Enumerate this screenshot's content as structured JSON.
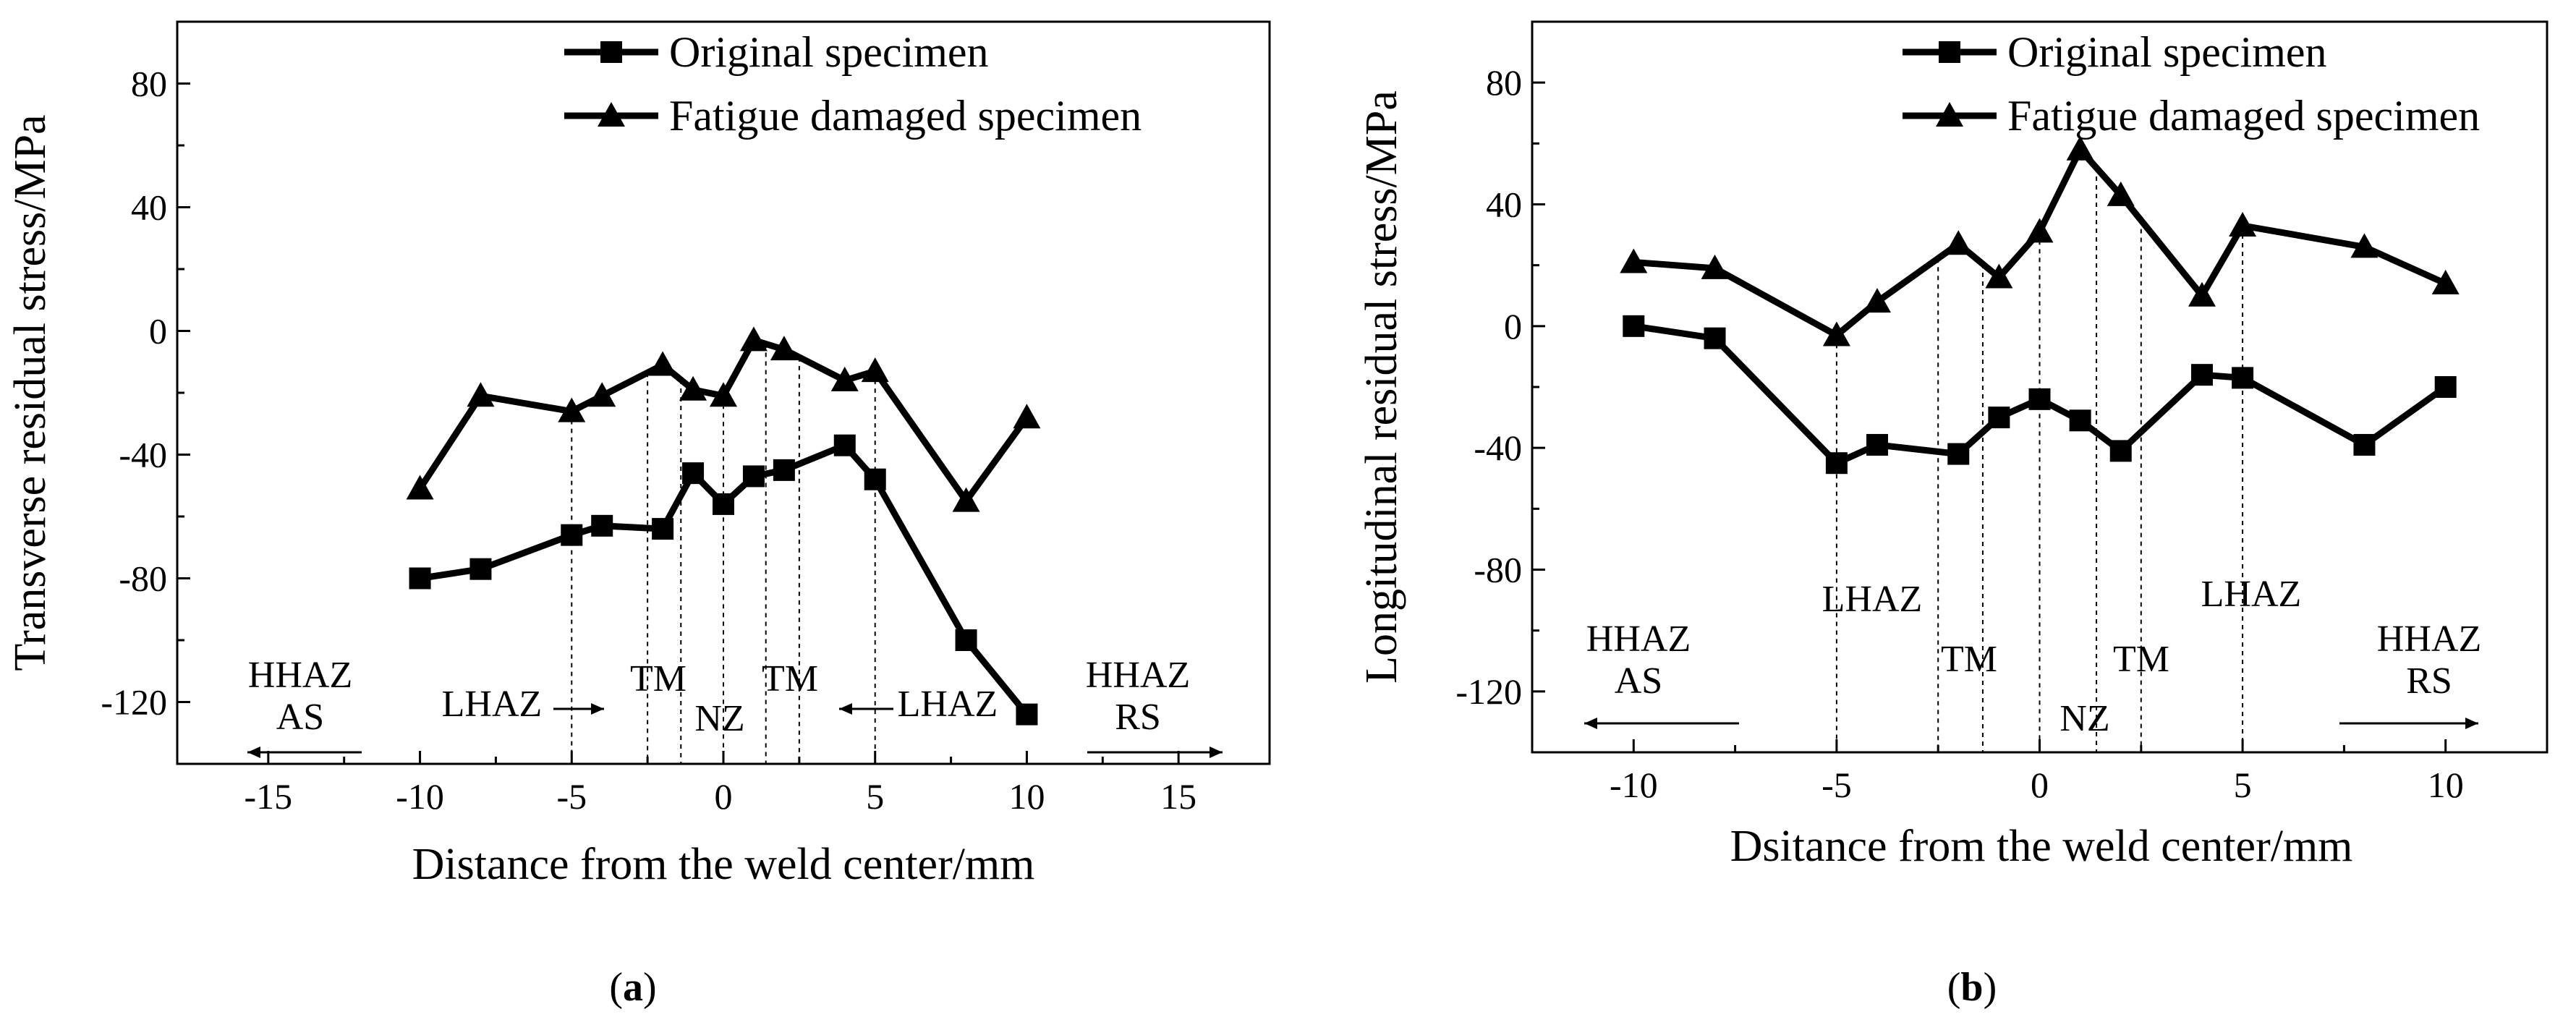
{
  "chart_data": [
    {
      "type": "line",
      "panel_label": "a",
      "xlabel": "Distance from the weld center/mm",
      "ylabel": "Transverse residual stress/MPa",
      "xlim": [
        -18,
        18
      ],
      "ylim": [
        -140,
        100
      ],
      "xticks": [
        -15,
        -10,
        -5,
        0,
        5,
        10,
        15
      ],
      "yticks": [
        -120,
        -80,
        -40,
        0,
        40,
        80
      ],
      "legend_position": "top-right",
      "series": [
        {
          "name": "Original specimen",
          "marker": "square",
          "x": [
            -10,
            -8,
            -5,
            -4,
            -2,
            -1,
            0,
            1,
            2,
            4,
            5,
            8,
            10
          ],
          "y": [
            -80,
            -77,
            -66,
            -63,
            -64,
            -46,
            -56,
            -47,
            -45,
            -37,
            -48,
            -100,
            -124
          ]
        },
        {
          "name": "Fatigue damaged specimen",
          "marker": "triangle",
          "x": [
            -10,
            -8,
            -5,
            -4,
            -2,
            -1,
            0,
            1,
            2,
            4,
            5,
            8,
            10
          ],
          "y": [
            -51,
            -21,
            -26,
            -21,
            -11,
            -19,
            -21,
            -3,
            -6,
            -16,
            -13,
            -55,
            -28
          ]
        }
      ],
      "region_lines_x": [
        -5,
        -2.5,
        -1.4,
        0,
        1.4,
        2.5,
        5
      ],
      "regions": [
        {
          "label": "HHAZ",
          "sub": "AS",
          "arrow": "left"
        },
        {
          "label": "LHAZ",
          "arrow": "right"
        },
        {
          "label": "TM"
        },
        {
          "label": "NZ"
        },
        {
          "label": "TM"
        },
        {
          "label": "LHAZ",
          "arrow": "left"
        },
        {
          "label": "HHAZ",
          "sub": "RS",
          "arrow": "right"
        }
      ]
    },
    {
      "type": "line",
      "panel_label": "b",
      "xlabel": "Dsitance from the weld center/mm",
      "ylabel": "Longitudinal residual stress/MPa",
      "xlim": [
        -12.5,
        12.5
      ],
      "ylim": [
        -140,
        100
      ],
      "xticks": [
        -10,
        -5,
        0,
        5,
        10
      ],
      "yticks": [
        -120,
        -80,
        -40,
        0,
        40,
        80
      ],
      "legend_position": "top-right",
      "series": [
        {
          "name": "Original specimen",
          "marker": "square",
          "x": [
            -10,
            -8,
            -5,
            -4,
            -2,
            -1,
            0,
            1,
            2,
            4,
            5,
            8,
            10
          ],
          "y": [
            0,
            -4,
            -45,
            -39,
            -42,
            -30,
            -24,
            -31,
            -41,
            -16,
            -17,
            -39,
            -20
          ]
        },
        {
          "name": "Fatigue damaged specimen",
          "marker": "triangle",
          "x": [
            -10,
            -8,
            -5,
            -4,
            -2,
            -1,
            0,
            1,
            2,
            4,
            5,
            8,
            10
          ],
          "y": [
            21,
            19,
            -3,
            8,
            27,
            16,
            31,
            58,
            43,
            10,
            33,
            26,
            14
          ]
        }
      ],
      "region_lines_x": [
        -5,
        -2.5,
        -1.4,
        0,
        1.4,
        2.5,
        5
      ],
      "regions": [
        {
          "label": "HHAZ",
          "sub": "AS",
          "arrow": "left"
        },
        {
          "label": "LHAZ"
        },
        {
          "label": "TM"
        },
        {
          "label": "NZ"
        },
        {
          "label": "TM"
        },
        {
          "label": "LHAZ"
        },
        {
          "label": "HHAZ",
          "sub": "RS",
          "arrow": "right"
        }
      ]
    }
  ]
}
